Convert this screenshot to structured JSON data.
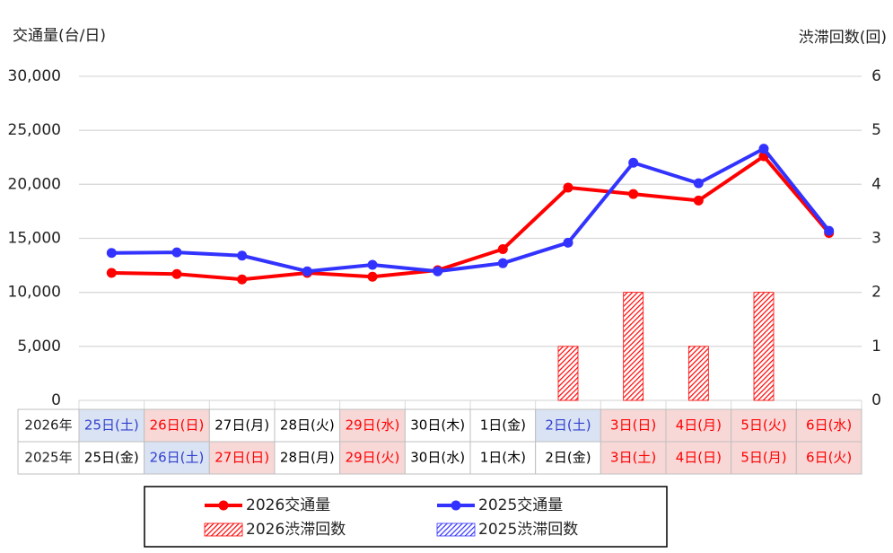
{
  "chart_data": {
    "type": "combo",
    "y_label": "交通量(台/日)",
    "y2_label": "渋滞回数(回)",
    "ylim": [
      0,
      30000
    ],
    "yticks": [
      0,
      {
        "value": 5000,
        "label": "5,000"
      },
      {
        "value": 10000,
        "label": "10,000"
      },
      {
        "value": 15000,
        "label": "15,000"
      },
      {
        "value": 20000,
        "label": "20,000"
      },
      {
        "value": 25000,
        "label": "25,000"
      },
      {
        "value": 30000,
        "label": "30,000"
      }
    ],
    "y2lim": [
      0,
      6
    ],
    "y2ticks": [
      0,
      1,
      2,
      3,
      4,
      5,
      6
    ],
    "grid": true,
    "categories": [
      "25日(土)",
      "26日(日)",
      "27日(月)",
      "28日(火)",
      "29日(水)",
      "30日(木)",
      "1日(金)",
      "2日(土)",
      "3日(日)",
      "4日(月)",
      "5日(火)",
      "6日(水)"
    ],
    "table_rows": [
      {
        "label": "2026年",
        "cells": [
          "25日(土)",
          "26日(日)",
          "27日(月)",
          "28日(火)",
          "29日(水)",
          "30日(木)",
          "1日(金)",
          "2日(土)",
          "3日(日)",
          "4日(月)",
          "5日(火)",
          "6日(水)"
        ],
        "saturday_cells": [
          0,
          7
        ],
        "holiday_cells": [
          1,
          4,
          8,
          9,
          10,
          11
        ]
      },
      {
        "label": "2025年",
        "cells": [
          "25日(金)",
          "26日(土)",
          "27日(日)",
          "28日(月)",
          "29日(火)",
          "30日(水)",
          "1日(木)",
          "2日(金)",
          "3日(土)",
          "4日(日)",
          "5日(月)",
          "6日(火)"
        ],
        "saturday_cells": [
          1
        ],
        "holiday_cells": [
          2,
          4,
          8,
          9,
          10,
          11
        ]
      }
    ],
    "series": [
      {
        "name": "2026交通量",
        "type": "line",
        "color": "#ff0000",
        "values": [
          11800,
          11700,
          11200,
          11800,
          11450,
          12050,
          14000,
          19700,
          19100,
          18500,
          22600,
          15500
        ]
      },
      {
        "name": "2025交通量",
        "type": "line",
        "color": "#3333ff",
        "values": [
          13650,
          13700,
          13400,
          11950,
          12550,
          11950,
          12700,
          14600,
          22000,
          20100,
          23300,
          15700
        ]
      },
      {
        "name": "2026渋滞回数",
        "type": "bar",
        "axis": "y2",
        "color": "#ff0000",
        "values": [
          0,
          0,
          0,
          0,
          0,
          0,
          0,
          1,
          2,
          1,
          2,
          0
        ]
      },
      {
        "name": "2025渋滞回数",
        "type": "bar",
        "axis": "y2",
        "color": "#3333ff",
        "values": [
          0,
          0,
          0,
          0,
          0,
          0,
          0,
          0,
          0,
          0,
          0,
          0
        ]
      }
    ]
  }
}
